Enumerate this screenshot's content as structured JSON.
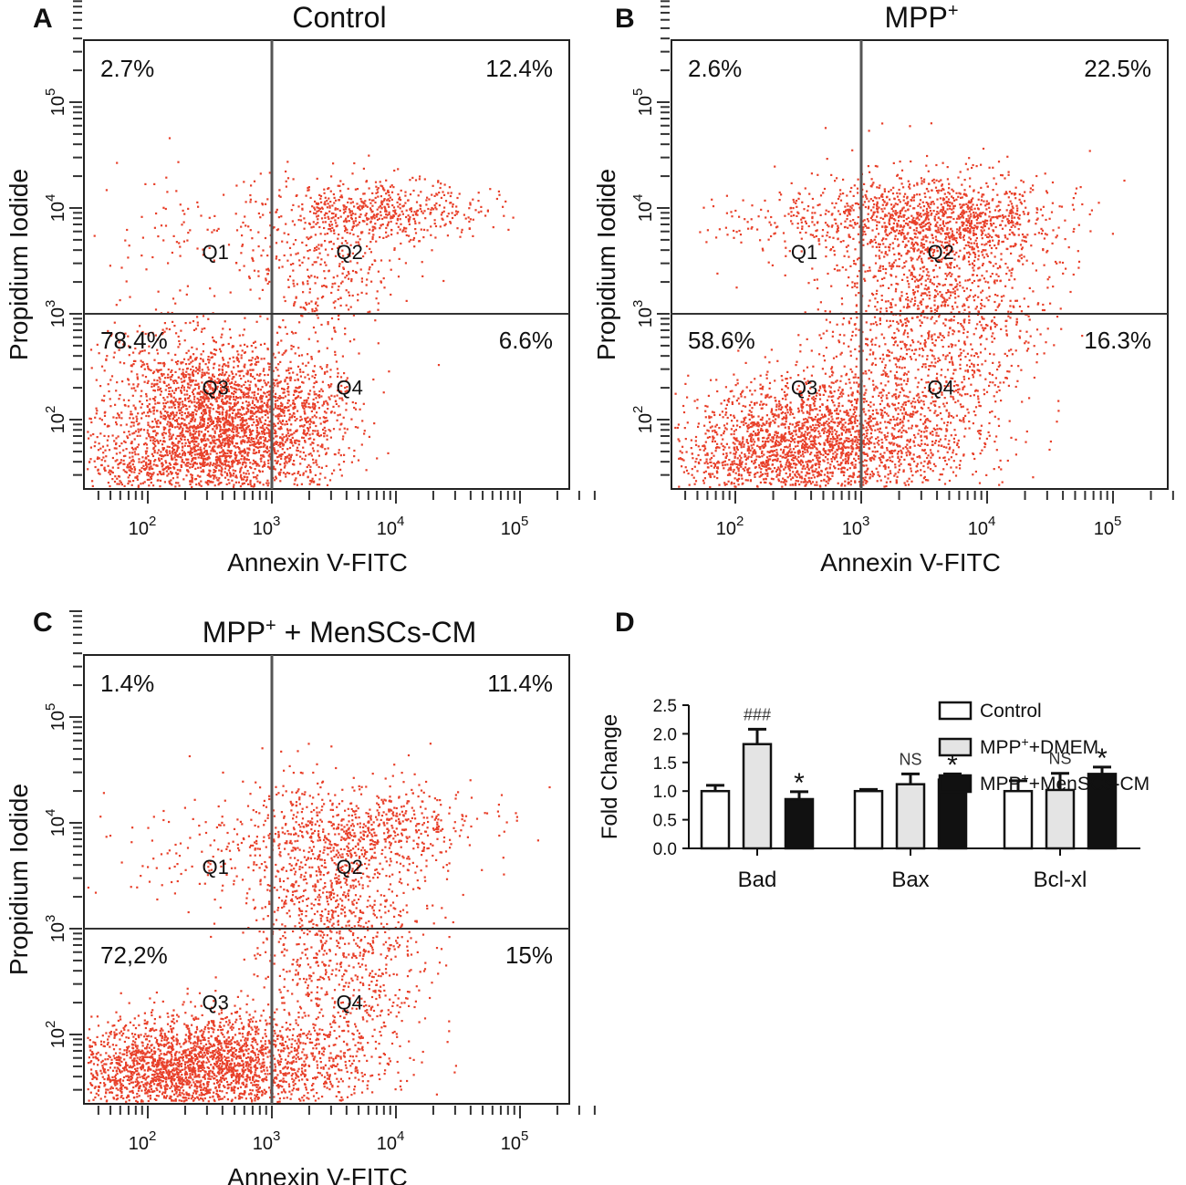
{
  "chart_data": [
    {
      "type": "scatter",
      "panel": "A",
      "title": "Control",
      "title_sup": "",
      "xlabel": "Annexin V-FITC",
      "ylabel": "Propidium Iodide",
      "xscale": "log",
      "yscale": "log",
      "xticks": [
        {
          "base": "10",
          "exp": "2",
          "value": 100
        },
        {
          "base": "10",
          "exp": "3",
          "value": 1000
        },
        {
          "base": "10",
          "exp": "4",
          "value": 10000
        },
        {
          "base": "10",
          "exp": "5",
          "value": 100000
        }
      ],
      "yticks": [
        {
          "base": "10",
          "exp": "2",
          "value": 100
        },
        {
          "base": "10",
          "exp": "3",
          "value": 1000
        },
        {
          "base": "10",
          "exp": "4",
          "value": 10000
        },
        {
          "base": "10",
          "exp": "5",
          "value": 100000
        }
      ],
      "gate": {
        "x": 1000,
        "y": 1000
      },
      "quadrant_names": [
        "Q1",
        "Q2",
        "Q3",
        "Q4"
      ],
      "quadrant_percent": {
        "Q1": "2.7%",
        "Q2": "12.4%",
        "Q3": "78.4%",
        "Q4": "6.6%"
      }
    },
    {
      "type": "scatter",
      "panel": "B",
      "title": "MPP",
      "title_sup": "+",
      "xlabel": "Annexin V-FITC",
      "ylabel": "Propidium Iodide",
      "xscale": "log",
      "yscale": "log",
      "xticks": [
        {
          "base": "10",
          "exp": "2",
          "value": 100
        },
        {
          "base": "10",
          "exp": "3",
          "value": 1000
        },
        {
          "base": "10",
          "exp": "4",
          "value": 10000
        },
        {
          "base": "10",
          "exp": "5",
          "value": 100000
        }
      ],
      "yticks": [
        {
          "base": "10",
          "exp": "2",
          "value": 100
        },
        {
          "base": "10",
          "exp": "3",
          "value": 1000
        },
        {
          "base": "10",
          "exp": "4",
          "value": 10000
        },
        {
          "base": "10",
          "exp": "5",
          "value": 100000
        }
      ],
      "gate": {
        "x": 1000,
        "y": 1000
      },
      "quadrant_names": [
        "Q1",
        "Q2",
        "Q3",
        "Q4"
      ],
      "quadrant_percent": {
        "Q1": "2.6%",
        "Q2": "22.5%",
        "Q3": "58.6%",
        "Q4": "16.3%"
      }
    },
    {
      "type": "scatter",
      "panel": "C",
      "title": "MPP",
      "title_sup": "+",
      "title_rest": " + MenSCs-CM",
      "xlabel": "Annexin V-FITC",
      "ylabel": "Propidium Iodide",
      "xscale": "log",
      "yscale": "log",
      "xticks": [
        {
          "base": "10",
          "exp": "2",
          "value": 100
        },
        {
          "base": "10",
          "exp": "3",
          "value": 1000
        },
        {
          "base": "10",
          "exp": "4",
          "value": 10000
        },
        {
          "base": "10",
          "exp": "5",
          "value": 100000
        }
      ],
      "yticks": [
        {
          "base": "10",
          "exp": "2",
          "value": 100
        },
        {
          "base": "10",
          "exp": "3",
          "value": 1000
        },
        {
          "base": "10",
          "exp": "4",
          "value": 10000
        },
        {
          "base": "10",
          "exp": "5",
          "value": 100000
        }
      ],
      "gate": {
        "x": 1000,
        "y": 1000
      },
      "quadrant_names": [
        "Q1",
        "Q2",
        "Q3",
        "Q4"
      ],
      "quadrant_percent": {
        "Q1": "1.4%",
        "Q2": "11.4%",
        "Q3": "72,2%",
        "Q4": "15%"
      }
    },
    {
      "type": "bar",
      "panel": "D",
      "title": "",
      "xlabel": "",
      "ylabel": "Fold Change",
      "ylim": [
        0,
        2.5
      ],
      "yticks": [
        "0.0",
        "0.5",
        "1.0",
        "1.5",
        "2.0",
        "2.5"
      ],
      "categories": [
        "Bad",
        "Bax",
        "Bcl-xl"
      ],
      "series": [
        {
          "name": "Control",
          "fill": "#ffffff",
          "values": [
            1.0,
            1.0,
            1.0
          ],
          "errors": [
            0.1,
            0.03,
            0.18
          ],
          "annotations": [
            "",
            "",
            ""
          ]
        },
        {
          "name": "MPP+DMEM",
          "name_main": "MPP",
          "name_sup": "+",
          "name_rest": "+DMEM",
          "fill": "#e4e4e4",
          "values": [
            1.82,
            1.12,
            1.02
          ],
          "errors": [
            0.26,
            0.18,
            0.29
          ],
          "annotations": [
            "###",
            "NS",
            "NS"
          ]
        },
        {
          "name": "MPP+MenSCs-CM",
          "name_main": "MPP",
          "name_sup": "+",
          "name_rest": "+MenSCs-CM",
          "fill": "#111111",
          "values": [
            0.86,
            1.2,
            1.3
          ],
          "errors": [
            0.13,
            0.1,
            0.12
          ],
          "annotations": [
            "*",
            "*",
            "*"
          ]
        }
      ],
      "legend_position": "top-right"
    }
  ]
}
